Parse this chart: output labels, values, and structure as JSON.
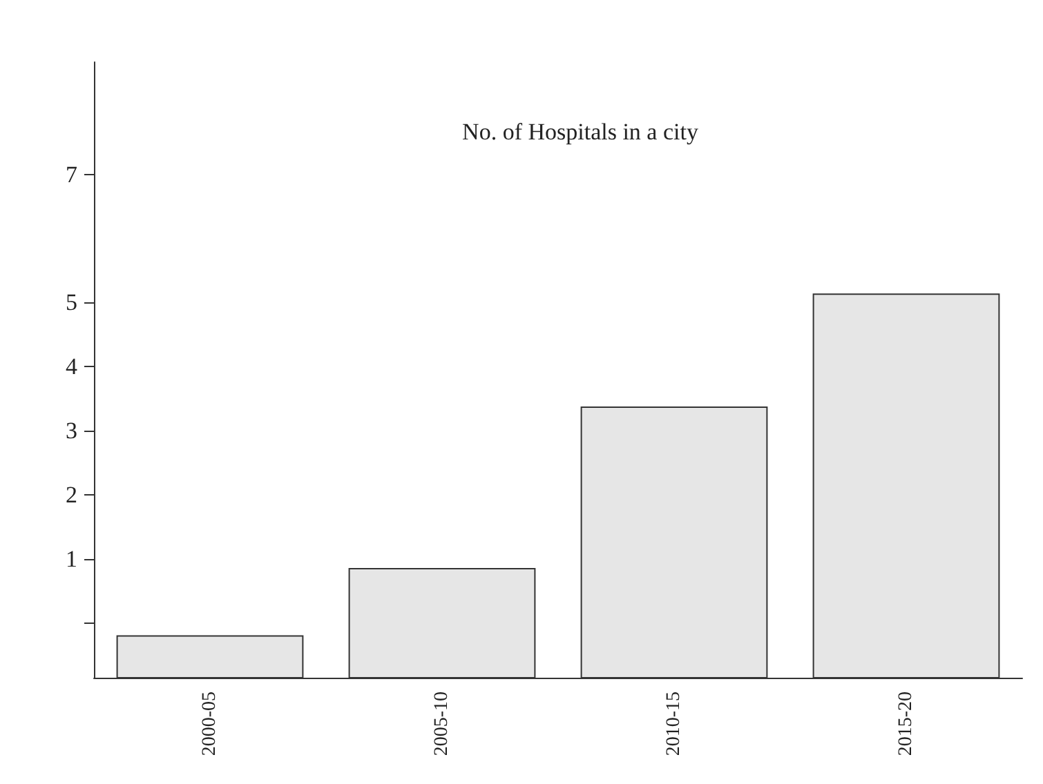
{
  "chart_data": {
    "type": "bar",
    "title": "No. of Hospitals in a city",
    "categories": [
      "2000-05",
      "2005-10",
      "2010-15",
      "2015-20"
    ],
    "base": [
      -0.85,
      -0.85,
      -0.85,
      -0.85
    ],
    "values": [
      0.65,
      1.7,
      4.22,
      5.98
    ],
    "color": "#e6e6e6",
    "ylim": [
      -0.85,
      8.75
    ],
    "yticks": [
      {
        "value": 0,
        "label": null
      },
      1,
      2,
      3,
      4,
      5,
      7
    ],
    "grid": false
  }
}
